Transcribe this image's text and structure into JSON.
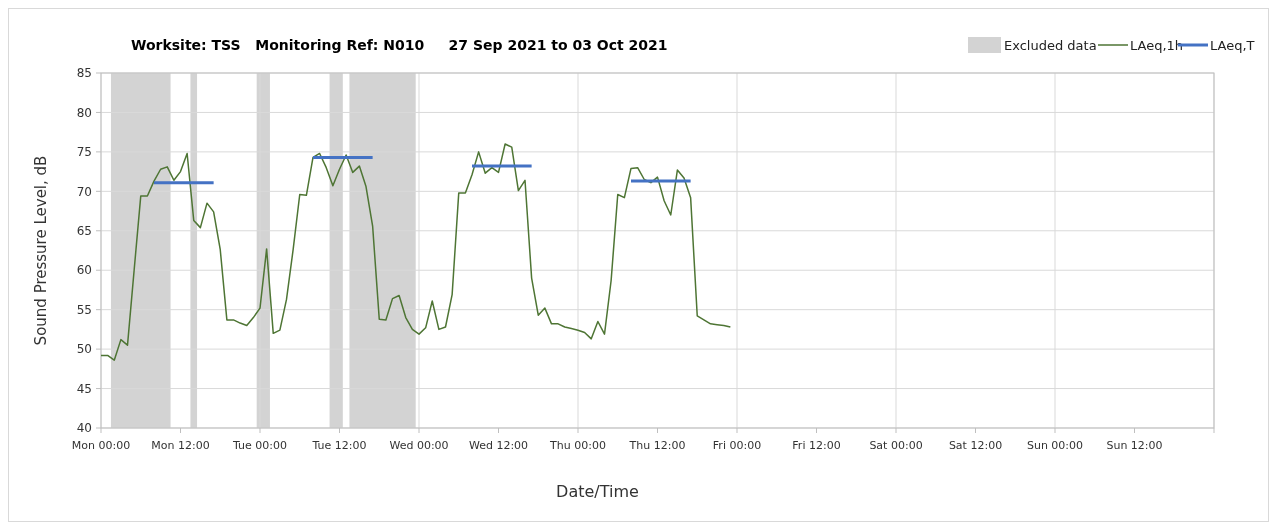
{
  "chart_data": {
    "type": "line",
    "title": "Worksite: TSS   Monitoring Ref: N010     27 Sep 2021 to 03 Oct 2021",
    "xlabel": "Date/Time",
    "ylabel": "Sound Pressure Level, dB",
    "xlim": [
      "2021-09-27T00:00",
      "2021-10-04T00:00"
    ],
    "xticks": [
      {
        "value": "2021-09-27T00:00",
        "label": "Mon 00:00"
      },
      {
        "value": "2021-09-27T12:00",
        "label": "Mon 12:00"
      },
      {
        "value": "2021-09-28T00:00",
        "label": "Tue 00:00"
      },
      {
        "value": "2021-09-28T12:00",
        "label": "Tue 12:00"
      },
      {
        "value": "2021-09-29T00:00",
        "label": "Wed 00:00"
      },
      {
        "value": "2021-09-29T12:00",
        "label": "Wed 12:00"
      },
      {
        "value": "2021-09-30T00:00",
        "label": "Thu 00:00"
      },
      {
        "value": "2021-09-30T12:00",
        "label": "Thu 12:00"
      },
      {
        "value": "2021-10-01T00:00",
        "label": "Fri 00:00"
      },
      {
        "value": "2021-10-01T12:00",
        "label": "Fri 12:00"
      },
      {
        "value": "2021-10-02T00:00",
        "label": "Sat 00:00"
      },
      {
        "value": "2021-10-02T12:00",
        "label": "Sat 12:00"
      },
      {
        "value": "2021-10-03T00:00",
        "label": "Sun 00:00"
      },
      {
        "value": "2021-10-03T12:00",
        "label": "Sun 12:00"
      },
      {
        "value": "2021-10-04T00:00",
        "label": null
      }
    ],
    "ylim": [
      40,
      85
    ],
    "yticks": [
      40,
      45,
      50,
      55,
      60,
      65,
      70,
      75,
      80,
      85
    ],
    "grid": true,
    "legend": "top right",
    "marker": "none",
    "line_style": "solid",
    "bands": [
      {
        "axis": "x",
        "from": "2021-09-27T01:30",
        "to": "2021-09-27T10:30",
        "label": "Excluded data",
        "color": "#d3d3d3"
      },
      {
        "axis": "x",
        "from": "2021-09-27T13:30",
        "to": "2021-09-27T14:30",
        "color": "#d3d3d3"
      },
      {
        "axis": "x",
        "from": "2021-09-27T23:30",
        "to": "2021-09-28T01:30",
        "color": "#d3d3d3"
      },
      {
        "axis": "x",
        "from": "2021-09-28T10:30",
        "to": "2021-09-28T12:30",
        "color": "#d3d3d3"
      },
      {
        "axis": "x",
        "from": "2021-09-28T13:30",
        "to": "2021-09-28T23:30",
        "color": "#d3d3d3"
      }
    ],
    "series": [
      {
        "name": "LAeq,1h",
        "color": "#4e7534",
        "x": [
          "2021-09-27T00:00",
          "2021-09-27T01:00",
          "2021-09-27T02:00",
          "2021-09-27T03:00",
          "2021-09-27T04:00",
          "2021-09-27T05:00",
          "2021-09-27T06:00",
          "2021-09-27T07:00",
          "2021-09-27T08:00",
          "2021-09-27T09:00",
          "2021-09-27T10:00",
          "2021-09-27T11:00",
          "2021-09-27T12:00",
          "2021-09-27T13:00",
          "2021-09-27T14:00",
          "2021-09-27T15:00",
          "2021-09-27T16:00",
          "2021-09-27T17:00",
          "2021-09-27T18:00",
          "2021-09-27T19:00",
          "2021-09-27T20:00",
          "2021-09-27T21:00",
          "2021-09-27T22:00",
          "2021-09-27T23:00",
          "2021-09-28T00:00",
          "2021-09-28T01:00",
          "2021-09-28T02:00",
          "2021-09-28T03:00",
          "2021-09-28T04:00",
          "2021-09-28T05:00",
          "2021-09-28T06:00",
          "2021-09-28T07:00",
          "2021-09-28T08:00",
          "2021-09-28T09:00",
          "2021-09-28T10:00",
          "2021-09-28T11:00",
          "2021-09-28T12:00",
          "2021-09-28T13:00",
          "2021-09-28T14:00",
          "2021-09-28T15:00",
          "2021-09-28T16:00",
          "2021-09-28T17:00",
          "2021-09-28T18:00",
          "2021-09-28T19:00",
          "2021-09-28T20:00",
          "2021-09-28T21:00",
          "2021-09-28T22:00",
          "2021-09-28T23:00",
          "2021-09-29T00:00",
          "2021-09-29T01:00",
          "2021-09-29T02:00",
          "2021-09-29T03:00",
          "2021-09-29T04:00",
          "2021-09-29T05:00",
          "2021-09-29T06:00",
          "2021-09-29T07:00",
          "2021-09-29T08:00",
          "2021-09-29T09:00",
          "2021-09-29T10:00",
          "2021-09-29T11:00",
          "2021-09-29T12:00",
          "2021-09-29T13:00",
          "2021-09-29T14:00",
          "2021-09-29T15:00",
          "2021-09-29T16:00",
          "2021-09-29T17:00",
          "2021-09-29T18:00",
          "2021-09-29T19:00",
          "2021-09-29T20:00",
          "2021-09-29T21:00",
          "2021-09-29T22:00",
          "2021-09-29T23:00",
          "2021-09-30T00:00",
          "2021-09-30T01:00",
          "2021-09-30T02:00",
          "2021-09-30T03:00",
          "2021-09-30T04:00",
          "2021-09-30T05:00",
          "2021-09-30T06:00",
          "2021-09-30T07:00",
          "2021-09-30T08:00",
          "2021-09-30T09:00",
          "2021-09-30T10:00",
          "2021-09-30T11:00",
          "2021-09-30T12:00",
          "2021-09-30T13:00",
          "2021-09-30T14:00",
          "2021-09-30T15:00",
          "2021-09-30T16:00",
          "2021-09-30T17:00",
          "2021-09-30T18:00",
          "2021-09-30T19:00",
          "2021-09-30T20:00",
          "2021-09-30T21:00",
          "2021-09-30T22:00",
          "2021-09-30T23:00"
        ],
        "values": [
          49.2,
          49.2,
          48.6,
          51.2,
          50.5,
          60,
          69.4,
          69.4,
          71.3,
          72.8,
          73.1,
          71.4,
          72.5,
          74.8,
          66.3,
          65.4,
          68.5,
          67.4,
          62.6,
          53.7,
          53.7,
          53.3,
          53.0,
          54.0,
          55.2,
          62.7,
          52.0,
          52.4,
          56.3,
          62.6,
          69.6,
          69.5,
          74.3,
          74.8,
          73.0,
          70.7,
          72.8,
          74.6,
          72.4,
          73.2,
          70.6,
          65.6,
          53.8,
          53.7,
          56.4,
          56.8,
          54.0,
          52.5,
          51.9,
          52.7,
          56.1,
          52.5,
          52.8,
          56.9,
          69.8,
          69.8,
          72.1,
          75.0,
          72.3,
          73.0,
          72.4,
          76.0,
          75.6,
          70.1,
          71.4,
          59.0,
          54.3,
          55.2,
          53.2,
          53.2,
          52.8,
          52.6,
          52.4,
          52.1,
          51.3,
          53.5,
          51.9,
          58.7,
          69.6,
          69.2,
          72.9,
          73.0,
          71.5,
          71.1,
          71.8,
          68.8,
          67.0,
          72.7,
          71.7,
          69.2,
          54.2,
          53.7,
          53.2,
          53.1,
          53.0,
          52.8
        ]
      },
      {
        "name": "LAeq,T",
        "color": "#4472c4",
        "x": [
          "2021-09-27T08:00",
          "2021-09-27T17:00",
          "2021-09-28T00:00",
          "2021-09-28T08:00",
          "2021-09-28T17:00",
          "2021-09-29T00:00",
          "2021-09-29T08:00",
          "2021-09-29T17:00",
          "2021-09-30T00:00",
          "2021-09-30T08:00",
          "2021-09-30T17:00"
        ],
        "values": [
          71.1,
          71.1,
          null,
          74.3,
          74.3,
          null,
          73.2,
          73.2,
          null,
          71.3,
          71.3
        ]
      }
    ]
  }
}
